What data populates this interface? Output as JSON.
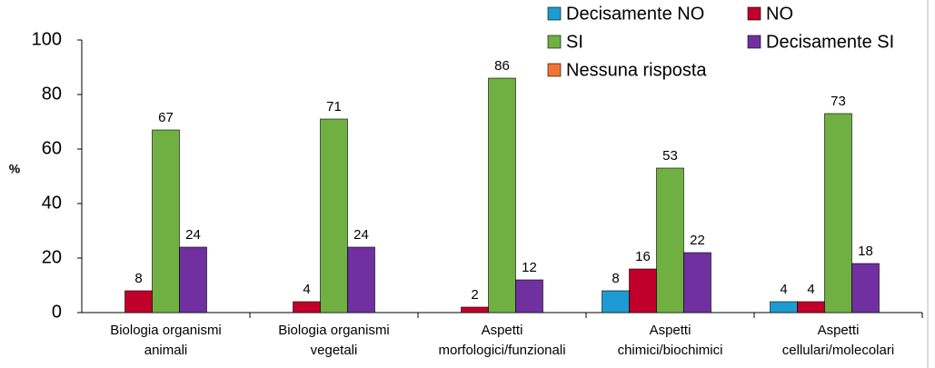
{
  "chart_data": {
    "type": "bar",
    "y_label": "%",
    "categories": [
      [
        "Biologia organismi",
        "animali"
      ],
      [
        "Biologia organismi",
        "vegetali"
      ],
      [
        "Aspetti",
        "morfologici/funzionali"
      ],
      [
        "Aspetti",
        "chimici/biochimici"
      ],
      [
        "Aspetti",
        "cellulari/molecolari"
      ]
    ],
    "series": [
      {
        "name": "Decisamente NO",
        "color": "#1e9bd2",
        "values": [
          null,
          null,
          null,
          8,
          4
        ]
      },
      {
        "name": "NO",
        "color": "#c0002a",
        "values": [
          8,
          4,
          2,
          16,
          4
        ]
      },
      {
        "name": "SI",
        "color": "#70b043",
        "values": [
          67,
          71,
          86,
          53,
          73
        ]
      },
      {
        "name": "Decisamente SI",
        "color": "#7030a0",
        "values": [
          24,
          24,
          12,
          22,
          18
        ]
      },
      {
        "name": "Nessuna risposta",
        "color": "#f07534",
        "values": [
          null,
          null,
          null,
          null,
          null
        ]
      }
    ],
    "ylim": [
      0,
      100
    ],
    "yticks": [
      0,
      20,
      40,
      60,
      80,
      100
    ],
    "grid": false,
    "legend": "top-right"
  }
}
